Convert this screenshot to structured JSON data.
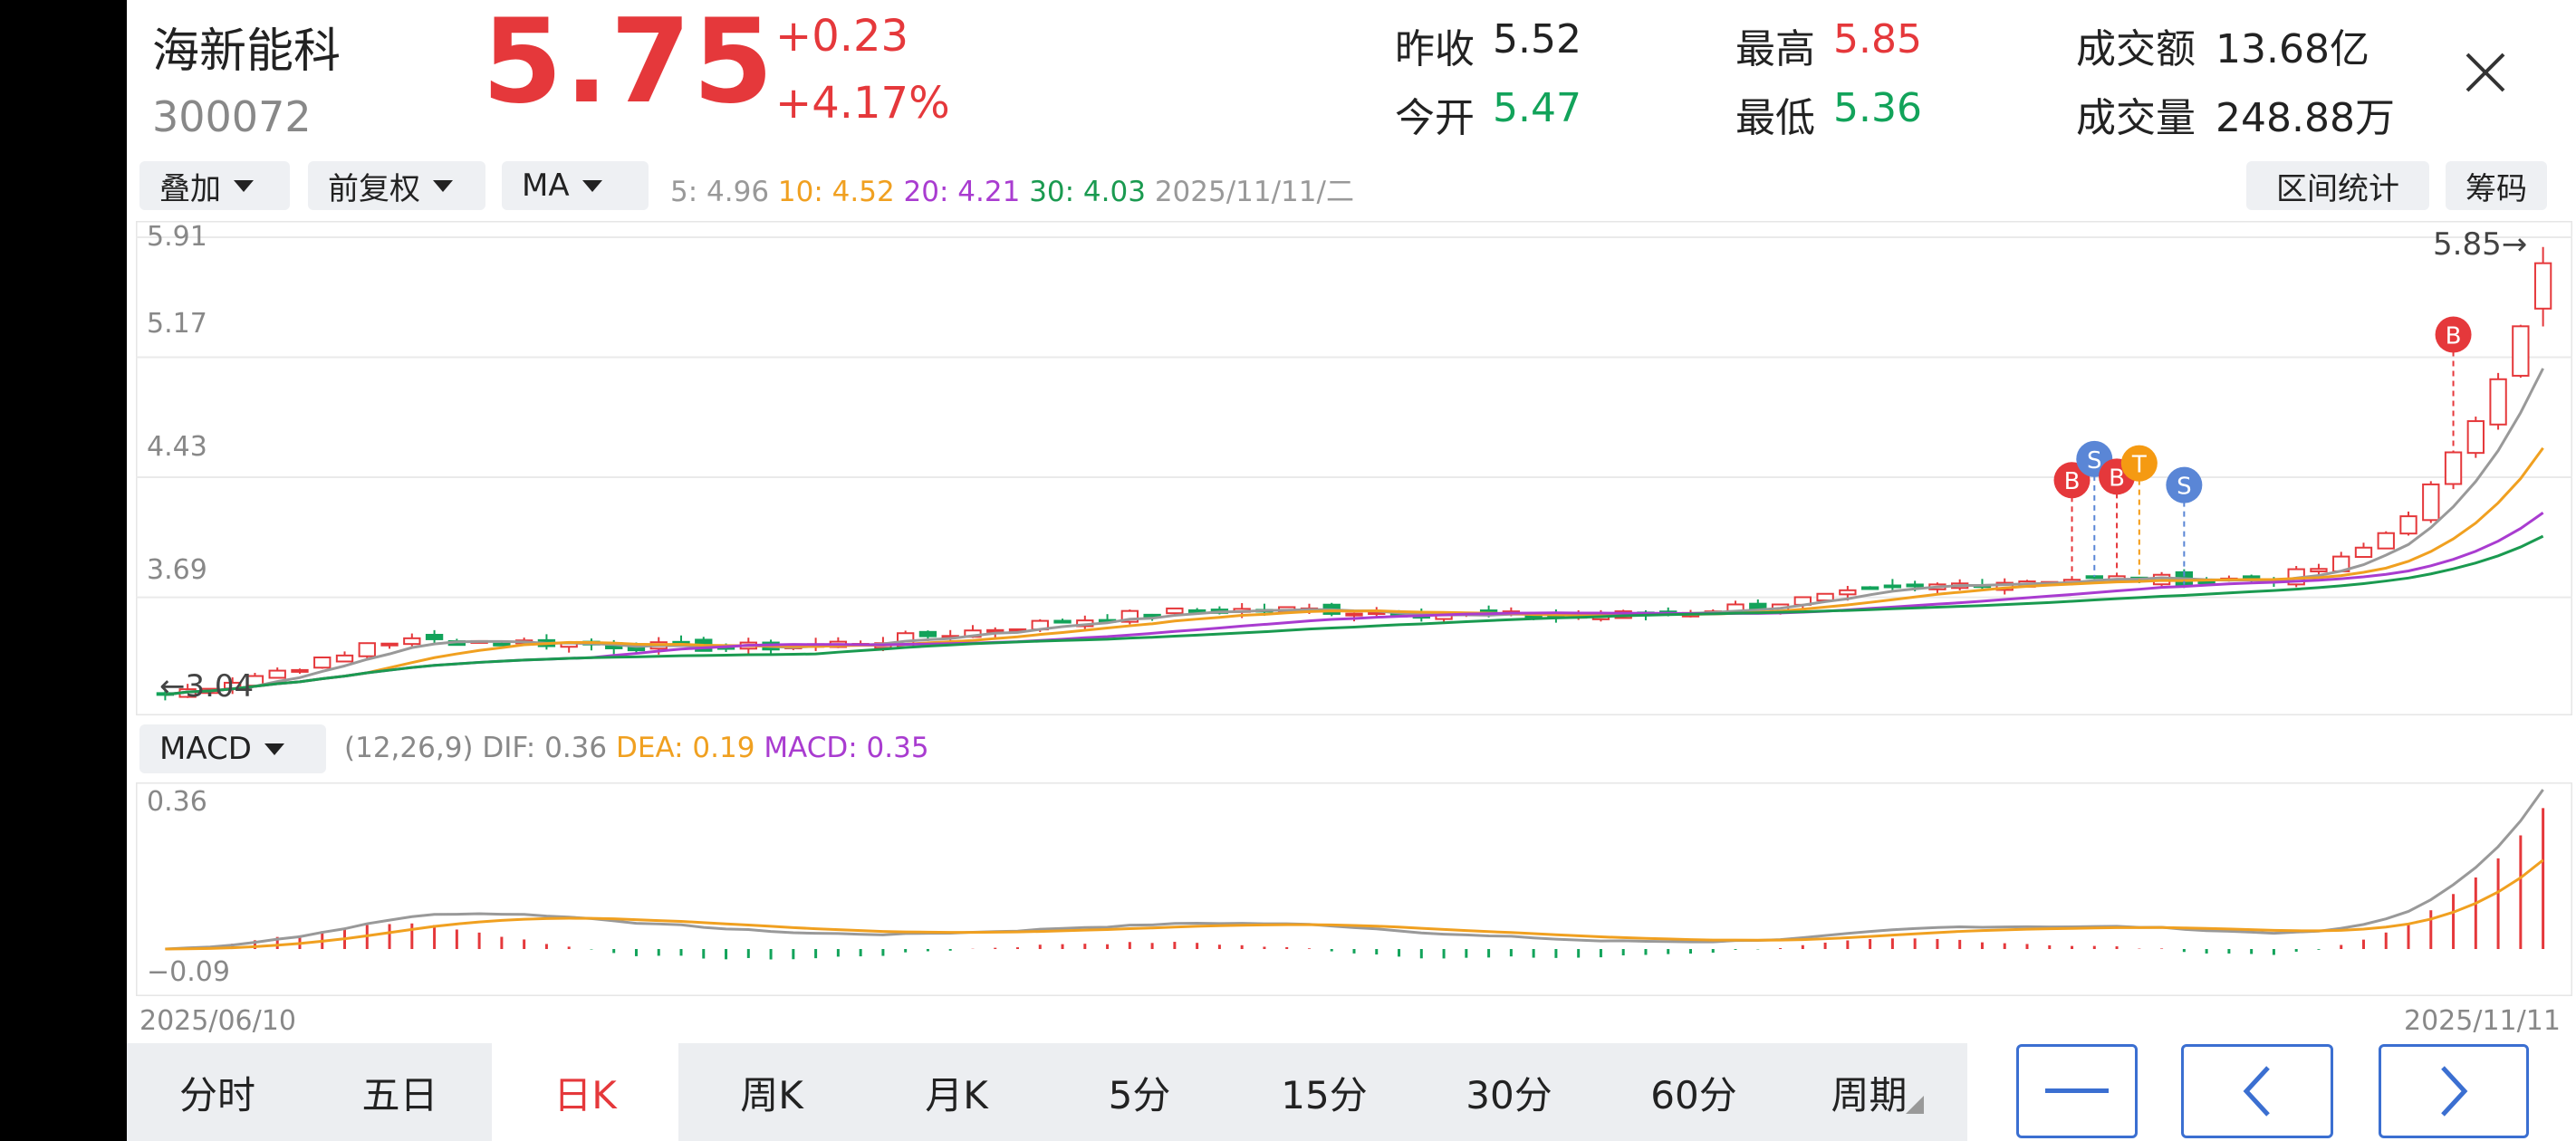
{
  "stock": {
    "name": "海新能科",
    "code": "300072",
    "price": "5.75",
    "change": "+0.23",
    "change_pct": "+4.17%"
  },
  "stats": {
    "prev_close_label": "昨收",
    "prev_close": "5.52",
    "open_label": "今开",
    "open": "5.47",
    "high_label": "最高",
    "high": "5.85",
    "low_label": "最低",
    "low": "5.36",
    "amount_label": "成交额",
    "amount": "13.68亿",
    "volume_label": "成交量",
    "volume": "248.88万"
  },
  "toolbar": {
    "overlay": "叠加",
    "adjust": "前复权",
    "indicator": "MA",
    "ma5": "5: 4.96",
    "ma10": "10: 4.52",
    "ma20": "20: 4.21",
    "ma30": "30: 4.03",
    "date": "2025/11/11/二",
    "interval_stats": "区间统计",
    "chips": "筹码"
  },
  "kchart": {
    "y_ticks": [
      "5.91",
      "5.17",
      "4.43",
      "3.69"
    ],
    "max_label": "5.85→",
    "min_label": "←3.04",
    "markers": [
      "B",
      "S",
      "B",
      "T",
      "S",
      "B"
    ]
  },
  "macd": {
    "selector": "MACD",
    "params": "(12,26,9) DIF: 0.36",
    "dea": "DEA: 0.19",
    "macd": "MACD: 0.35",
    "y_top": "0.36",
    "y_bottom": "−0.09"
  },
  "dates": {
    "start": "2025/06/10",
    "end": "2025/11/11"
  },
  "tabs": [
    "分时",
    "五日",
    "日K",
    "周K",
    "月K",
    "5分",
    "15分",
    "30分",
    "60分",
    "周期"
  ],
  "active_tab": "日K",
  "colors": {
    "up": "#e5383b",
    "down": "#12a35a",
    "ma5": "#999999",
    "ma10": "#f0a020",
    "ma20": "#a93cd0",
    "ma30": "#1a9a50",
    "buy": "#e5383b",
    "sell": "#5a86d6",
    "t": "#f59a12"
  },
  "chart_data": [
    {
      "type": "candlestick",
      "ylim": [
        3.04,
        5.91
      ],
      "y_ticks": [
        5.91,
        5.17,
        4.43,
        3.69
      ],
      "x_start": "2025/06/10",
      "x_end": "2025/11/11",
      "latest": {
        "open": 5.47,
        "high": 5.85,
        "low": 5.36,
        "close": 5.75
      },
      "ma_latest": {
        "ma5": 4.96,
        "ma10": 4.52,
        "ma20": 4.21,
        "ma30": 4.03
      }
    },
    {
      "type": "bar",
      "name": "MACD(12,26,9)",
      "ylim": [
        -0.09,
        0.36
      ],
      "latest": {
        "dif": 0.36,
        "dea": 0.19,
        "macd": 0.35
      }
    }
  ]
}
